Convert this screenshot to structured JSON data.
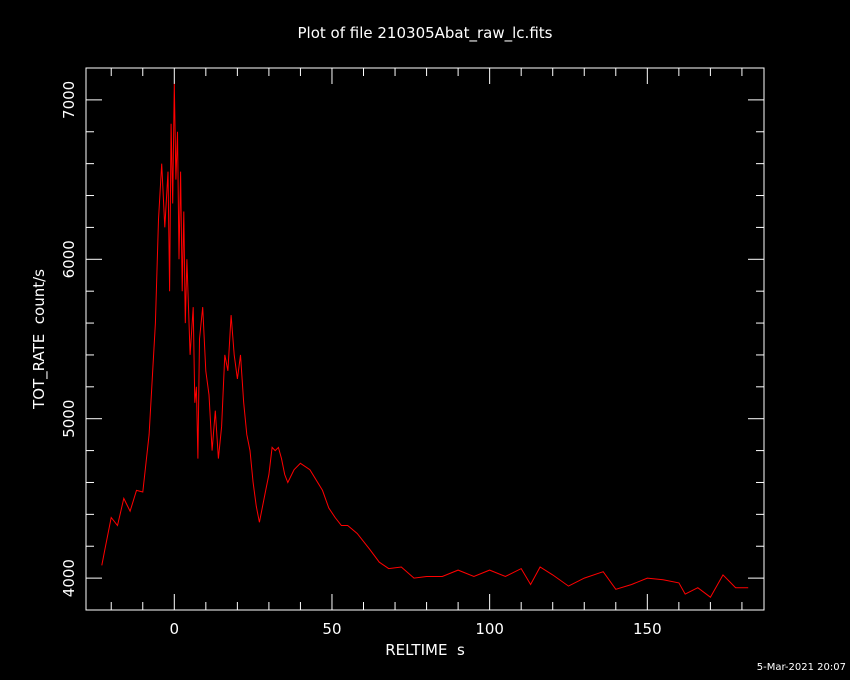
{
  "chart_data": {
    "type": "line",
    "title": "Plot of file 210305Abat_raw_lc.fits",
    "xlabel": "RELTIME  s",
    "ylabel": "TOT_RATE  count/s",
    "xlim": [
      -28,
      187
    ],
    "ylim": [
      3800,
      7200
    ],
    "x_ticks": [
      "0",
      "50",
      "100",
      "150"
    ],
    "x_tick_values": [
      0,
      50,
      100,
      150
    ],
    "y_ticks": [
      "4000",
      "5000",
      "6000",
      "7000"
    ],
    "y_tick_values": [
      4000,
      5000,
      6000,
      7000
    ],
    "grid": false,
    "series": [
      {
        "color": "#ff0000",
        "x": [
          -23,
          -22,
          -20,
          -18,
          -16,
          -14,
          -12,
          -10,
          -8,
          -6,
          -5,
          -4,
          -3,
          -2,
          -1.5,
          -1,
          -0.5,
          0,
          0.5,
          1,
          1.5,
          2,
          2.5,
          3,
          3.5,
          4,
          5,
          6,
          6.5,
          7,
          7.5,
          8,
          9,
          10,
          11,
          12,
          13,
          14,
          15,
          16,
          17,
          18,
          19,
          20,
          21,
          22,
          23,
          24,
          25,
          26,
          27,
          29,
          30,
          31,
          32,
          33,
          34,
          35,
          36,
          38,
          40,
          43,
          47,
          49,
          51,
          53,
          55,
          58,
          62,
          65,
          68,
          72,
          76,
          80,
          85,
          90,
          95,
          100,
          105,
          110,
          113,
          116,
          120,
          125,
          130,
          136,
          140,
          145,
          150,
          155,
          160,
          162,
          166,
          170,
          174,
          178,
          182
        ],
        "y": [
          4080,
          4180,
          4380,
          4330,
          4500,
          4420,
          4550,
          4540,
          4900,
          5600,
          6250,
          6600,
          6200,
          6550,
          5800,
          6850,
          6350,
          7100,
          6500,
          6800,
          6000,
          6550,
          5800,
          6300,
          5600,
          6000,
          5400,
          5700,
          5100,
          5200,
          4750,
          5500,
          5700,
          5300,
          5150,
          4800,
          5050,
          4750,
          4950,
          5400,
          5300,
          5650,
          5400,
          5250,
          5400,
          5100,
          4900,
          4800,
          4600,
          4450,
          4350,
          4550,
          4650,
          4820,
          4800,
          4820,
          4750,
          4650,
          4600,
          4680,
          4720,
          4680,
          4550,
          4440,
          4380,
          4330,
          4330,
          4280,
          4180,
          4100,
          4060,
          4070,
          4000,
          4010,
          4010,
          4050,
          4010,
          4050,
          4010,
          4060,
          3960,
          4070,
          4020,
          3950,
          4000,
          4040,
          3930,
          3960,
          4000,
          3990,
          3970,
          3900,
          3940,
          3880,
          4020,
          3940,
          3940
        ]
      }
    ]
  },
  "footer": {
    "timestamp": "5-Mar-2021 20:07"
  },
  "colors": {
    "background": "#000000",
    "frame": "#ffffff",
    "series": "#ff0000",
    "text": "#ffffff"
  }
}
